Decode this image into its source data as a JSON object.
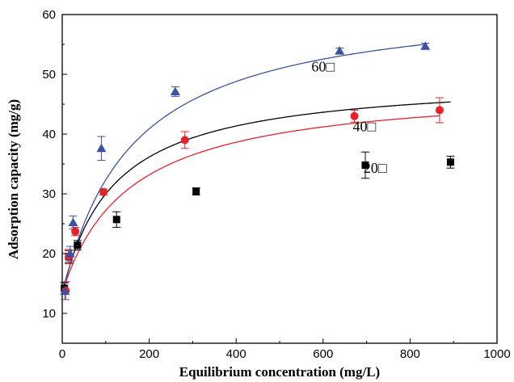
{
  "chart_data": {
    "type": "scatter",
    "title": "",
    "xlabel": "Equilibrium concentration (mg/L)",
    "ylabel": "Adsorption capacity (mg/g)",
    "xlim": [
      0,
      1000
    ],
    "ylim": [
      5,
      60
    ],
    "xticks": [
      "0",
      "200",
      "400",
      "600",
      "800",
      "1000"
    ],
    "yticks": [
      "10",
      "20",
      "30",
      "40",
      "50",
      "60"
    ],
    "xtick_values": [
      0,
      200,
      400,
      600,
      800,
      1000
    ],
    "ytick_values": [
      10,
      20,
      30,
      40,
      50,
      60
    ],
    "grid": false,
    "legend": "none",
    "series": [
      {
        "name": "20□",
        "marker": "square",
        "color": "#000000",
        "x": [
          5,
          15,
          35,
          125,
          308,
          697,
          893
        ],
        "y": [
          14.2,
          19.5,
          21.4,
          25.7,
          30.4,
          34.8,
          35.3
        ],
        "err": [
          1.0,
          1.0,
          0.8,
          1.3,
          0.6,
          2.2,
          1.0
        ],
        "fit_qmax": 36.3,
        "fit_ka": 0.0085,
        "fit_offset": 13.3
      },
      {
        "name": "40□",
        "marker": "circle",
        "color": "#e8202a",
        "x": [
          8,
          15,
          30,
          95,
          282,
          672,
          868
        ],
        "y": [
          13.8,
          19.5,
          23.7,
          30.3,
          39.0,
          43.0,
          44.0
        ],
        "err": [
          1.5,
          1.2,
          0.7,
          0.5,
          1.4,
          1.0,
          2.1
        ],
        "fit_qmax": 34.8,
        "fit_ka": 0.0065,
        "fit_offset": 13.5
      },
      {
        "name": "60□",
        "marker": "triangle",
        "color": "#3a52a4",
        "x": [
          6,
          18,
          25,
          90,
          260,
          638,
          835
        ],
        "y": [
          13.7,
          20.0,
          25.2,
          37.6,
          47.1,
          53.9,
          54.7
        ],
        "err": [
          1.4,
          1.2,
          1.1,
          2.0,
          0.8,
          0.5,
          0.5
        ],
        "fit_qmax": 50.0,
        "fit_ka": 0.0063,
        "fit_offset": 13.0
      }
    ]
  }
}
